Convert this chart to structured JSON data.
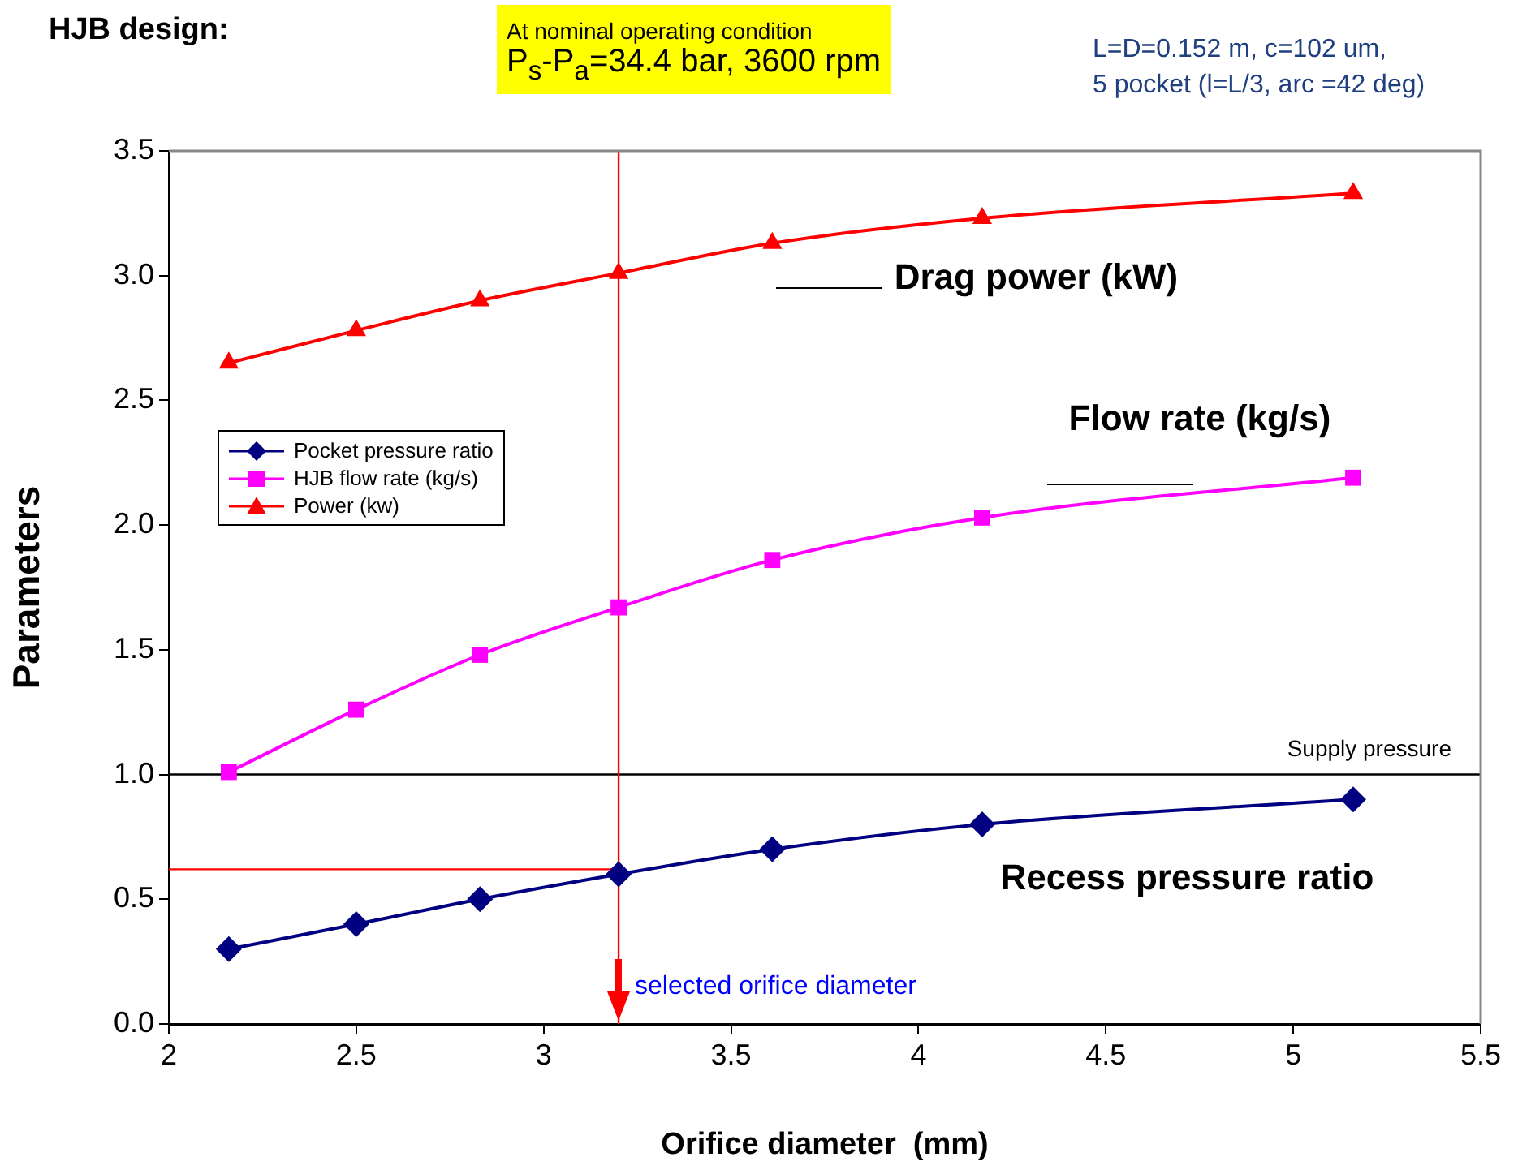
{
  "chart_data": {
    "type": "line",
    "title": "HJB design:",
    "xlabel": "Orifice diameter  (mm)",
    "ylabel": "Parameters",
    "x": [
      2.16,
      2.5,
      2.83,
      3.2,
      3.61,
      4.17,
      5.16
    ],
    "series": [
      {
        "name": "Pocket pressure ratio",
        "color": "#000080",
        "marker": "diamond",
        "values": [
          0.3,
          0.4,
          0.5,
          0.6,
          0.7,
          0.8,
          0.9
        ]
      },
      {
        "name": "HJB flow rate (kg/s)",
        "color": "#ff00ff",
        "marker": "square",
        "values": [
          1.01,
          1.26,
          1.48,
          1.67,
          1.86,
          2.03,
          2.19
        ]
      },
      {
        "name": "Power (kw)",
        "color": "#ff0000",
        "marker": "triangle",
        "values": [
          2.65,
          2.78,
          2.9,
          3.01,
          3.13,
          3.23,
          3.33
        ]
      }
    ],
    "xlim": [
      2,
      5.5
    ],
    "xticks": [
      2,
      2.5,
      3,
      3.5,
      4,
      4.5,
      5,
      5.5
    ],
    "ylim": [
      0,
      3.5
    ],
    "yticks": [
      {
        "value": 0,
        "label": "0.0"
      },
      {
        "value": 0.5,
        "label": "0.5"
      },
      {
        "value": 1,
        "label": "1.0"
      },
      {
        "value": 1.5,
        "label": "1.5"
      },
      {
        "value": 2,
        "label": "2.0"
      },
      {
        "value": 2.5,
        "label": "2.5"
      },
      {
        "value": 3,
        "label": "3.0"
      },
      {
        "value": 3.5,
        "label": "3.5"
      }
    ],
    "ref_lines": [
      {
        "axis": "y",
        "value": 1,
        "label": "Supply pressure",
        "color": "#000000"
      },
      {
        "axis": "x",
        "value": 3.2,
        "label": "selected orifice diameter",
        "color": "#ff0000"
      },
      {
        "axis": "y",
        "value": 0.62,
        "label": null,
        "color": "#ff0000"
      }
    ],
    "annotations": [
      "At nominal operating condition",
      "P$_{s}$-P$_{a}$=34.4 bar, 3600 rpm",
      "L=D=0.152 m, c=102 um,",
      "5 pocket (l=L/3, arc =42 deg)",
      "Drag power (kW)",
      "Flow rate (kg/s)",
      "Recess pressure ratio"
    ],
    "legend": "left",
    "grid": false,
    "line_style": "solid"
  }
}
